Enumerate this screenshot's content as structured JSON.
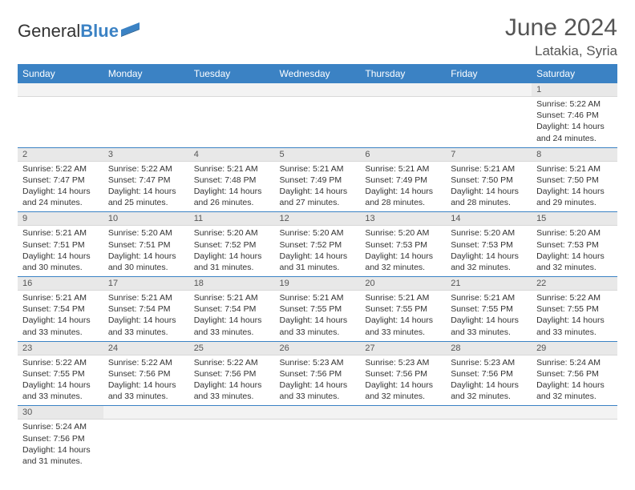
{
  "brand": {
    "name1": "General",
    "name2": "Blue"
  },
  "title": "June 2024",
  "location": "Latakia, Syria",
  "colors": {
    "header_bg": "#3b82c4",
    "header_text": "#ffffff",
    "daynum_bg": "#e8e8e8",
    "row_divider": "#3b82c4",
    "text": "#333333",
    "title_text": "#555555"
  },
  "layout": {
    "columns": 7,
    "rows": 6,
    "font_family": "Arial",
    "cell_font_size_pt": 8,
    "header_font_size_pt": 9,
    "title_font_size_pt": 22
  },
  "weekdays": [
    "Sunday",
    "Monday",
    "Tuesday",
    "Wednesday",
    "Thursday",
    "Friday",
    "Saturday"
  ],
  "days": [
    null,
    null,
    null,
    null,
    null,
    null,
    {
      "n": "1",
      "sunrise": "Sunrise: 5:22 AM",
      "sunset": "Sunset: 7:46 PM",
      "dl1": "Daylight: 14 hours",
      "dl2": "and 24 minutes."
    },
    {
      "n": "2",
      "sunrise": "Sunrise: 5:22 AM",
      "sunset": "Sunset: 7:47 PM",
      "dl1": "Daylight: 14 hours",
      "dl2": "and 24 minutes."
    },
    {
      "n": "3",
      "sunrise": "Sunrise: 5:22 AM",
      "sunset": "Sunset: 7:47 PM",
      "dl1": "Daylight: 14 hours",
      "dl2": "and 25 minutes."
    },
    {
      "n": "4",
      "sunrise": "Sunrise: 5:21 AM",
      "sunset": "Sunset: 7:48 PM",
      "dl1": "Daylight: 14 hours",
      "dl2": "and 26 minutes."
    },
    {
      "n": "5",
      "sunrise": "Sunrise: 5:21 AM",
      "sunset": "Sunset: 7:49 PM",
      "dl1": "Daylight: 14 hours",
      "dl2": "and 27 minutes."
    },
    {
      "n": "6",
      "sunrise": "Sunrise: 5:21 AM",
      "sunset": "Sunset: 7:49 PM",
      "dl1": "Daylight: 14 hours",
      "dl2": "and 28 minutes."
    },
    {
      "n": "7",
      "sunrise": "Sunrise: 5:21 AM",
      "sunset": "Sunset: 7:50 PM",
      "dl1": "Daylight: 14 hours",
      "dl2": "and 28 minutes."
    },
    {
      "n": "8",
      "sunrise": "Sunrise: 5:21 AM",
      "sunset": "Sunset: 7:50 PM",
      "dl1": "Daylight: 14 hours",
      "dl2": "and 29 minutes."
    },
    {
      "n": "9",
      "sunrise": "Sunrise: 5:21 AM",
      "sunset": "Sunset: 7:51 PM",
      "dl1": "Daylight: 14 hours",
      "dl2": "and 30 minutes."
    },
    {
      "n": "10",
      "sunrise": "Sunrise: 5:20 AM",
      "sunset": "Sunset: 7:51 PM",
      "dl1": "Daylight: 14 hours",
      "dl2": "and 30 minutes."
    },
    {
      "n": "11",
      "sunrise": "Sunrise: 5:20 AM",
      "sunset": "Sunset: 7:52 PM",
      "dl1": "Daylight: 14 hours",
      "dl2": "and 31 minutes."
    },
    {
      "n": "12",
      "sunrise": "Sunrise: 5:20 AM",
      "sunset": "Sunset: 7:52 PM",
      "dl1": "Daylight: 14 hours",
      "dl2": "and 31 minutes."
    },
    {
      "n": "13",
      "sunrise": "Sunrise: 5:20 AM",
      "sunset": "Sunset: 7:53 PM",
      "dl1": "Daylight: 14 hours",
      "dl2": "and 32 minutes."
    },
    {
      "n": "14",
      "sunrise": "Sunrise: 5:20 AM",
      "sunset": "Sunset: 7:53 PM",
      "dl1": "Daylight: 14 hours",
      "dl2": "and 32 minutes."
    },
    {
      "n": "15",
      "sunrise": "Sunrise: 5:20 AM",
      "sunset": "Sunset: 7:53 PM",
      "dl1": "Daylight: 14 hours",
      "dl2": "and 32 minutes."
    },
    {
      "n": "16",
      "sunrise": "Sunrise: 5:21 AM",
      "sunset": "Sunset: 7:54 PM",
      "dl1": "Daylight: 14 hours",
      "dl2": "and 33 minutes."
    },
    {
      "n": "17",
      "sunrise": "Sunrise: 5:21 AM",
      "sunset": "Sunset: 7:54 PM",
      "dl1": "Daylight: 14 hours",
      "dl2": "and 33 minutes."
    },
    {
      "n": "18",
      "sunrise": "Sunrise: 5:21 AM",
      "sunset": "Sunset: 7:54 PM",
      "dl1": "Daylight: 14 hours",
      "dl2": "and 33 minutes."
    },
    {
      "n": "19",
      "sunrise": "Sunrise: 5:21 AM",
      "sunset": "Sunset: 7:55 PM",
      "dl1": "Daylight: 14 hours",
      "dl2": "and 33 minutes."
    },
    {
      "n": "20",
      "sunrise": "Sunrise: 5:21 AM",
      "sunset": "Sunset: 7:55 PM",
      "dl1": "Daylight: 14 hours",
      "dl2": "and 33 minutes."
    },
    {
      "n": "21",
      "sunrise": "Sunrise: 5:21 AM",
      "sunset": "Sunset: 7:55 PM",
      "dl1": "Daylight: 14 hours",
      "dl2": "and 33 minutes."
    },
    {
      "n": "22",
      "sunrise": "Sunrise: 5:22 AM",
      "sunset": "Sunset: 7:55 PM",
      "dl1": "Daylight: 14 hours",
      "dl2": "and 33 minutes."
    },
    {
      "n": "23",
      "sunrise": "Sunrise: 5:22 AM",
      "sunset": "Sunset: 7:55 PM",
      "dl1": "Daylight: 14 hours",
      "dl2": "and 33 minutes."
    },
    {
      "n": "24",
      "sunrise": "Sunrise: 5:22 AM",
      "sunset": "Sunset: 7:56 PM",
      "dl1": "Daylight: 14 hours",
      "dl2": "and 33 minutes."
    },
    {
      "n": "25",
      "sunrise": "Sunrise: 5:22 AM",
      "sunset": "Sunset: 7:56 PM",
      "dl1": "Daylight: 14 hours",
      "dl2": "and 33 minutes."
    },
    {
      "n": "26",
      "sunrise": "Sunrise: 5:23 AM",
      "sunset": "Sunset: 7:56 PM",
      "dl1": "Daylight: 14 hours",
      "dl2": "and 33 minutes."
    },
    {
      "n": "27",
      "sunrise": "Sunrise: 5:23 AM",
      "sunset": "Sunset: 7:56 PM",
      "dl1": "Daylight: 14 hours",
      "dl2": "and 32 minutes."
    },
    {
      "n": "28",
      "sunrise": "Sunrise: 5:23 AM",
      "sunset": "Sunset: 7:56 PM",
      "dl1": "Daylight: 14 hours",
      "dl2": "and 32 minutes."
    },
    {
      "n": "29",
      "sunrise": "Sunrise: 5:24 AM",
      "sunset": "Sunset: 7:56 PM",
      "dl1": "Daylight: 14 hours",
      "dl2": "and 32 minutes."
    },
    {
      "n": "30",
      "sunrise": "Sunrise: 5:24 AM",
      "sunset": "Sunset: 7:56 PM",
      "dl1": "Daylight: 14 hours",
      "dl2": "and 31 minutes."
    },
    null,
    null,
    null,
    null,
    null,
    null
  ]
}
